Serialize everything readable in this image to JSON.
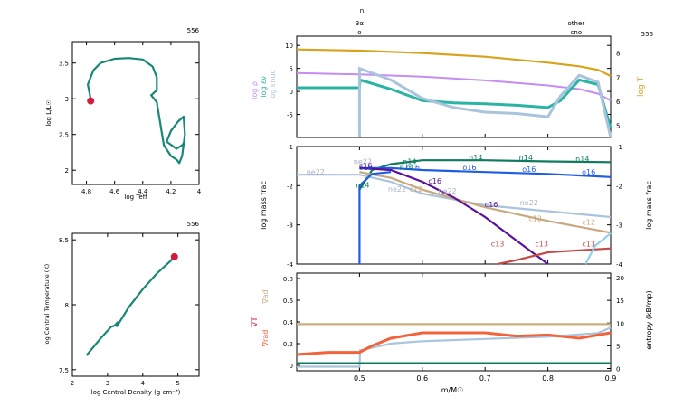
{
  "model_number": "556",
  "colors": {
    "teal": "#17877a",
    "crimson": "#d11c3c",
    "gold": "#d9a21b",
    "lavender": "#c58cf2",
    "lightblue": "#a9c4dc",
    "seagreen": "#2bb3a3",
    "darkgreen": "#0f7a5e",
    "purple": "#5b0f9e",
    "blue": "#1f5ce6",
    "tan": "#c8a97e",
    "rose": "#c44a4a",
    "skyblue": "#8fd0f0",
    "orange": "#f2633a",
    "khaki": "#c8b07e",
    "gray": "#a7b0c9"
  },
  "chart_data": [
    {
      "type": "line",
      "id": "hr",
      "corner_label": "556",
      "xlabel": "log Teff",
      "ylabel": "log L/L☉",
      "xlim": [
        4.9,
        4.0
      ],
      "ylim": [
        1.8,
        3.8
      ],
      "xticks": [
        "4.8",
        "4.6",
        "4.4",
        "4.2",
        "4"
      ],
      "yticks": [
        "2",
        "2.5",
        "3",
        "3.5"
      ],
      "series": [
        {
          "x": [
            4.78,
            4.77,
            4.79,
            4.75,
            4.7,
            4.6,
            4.5,
            4.4,
            4.33,
            4.3,
            4.3,
            4.34,
            4.3,
            4.25,
            4.2,
            4.16,
            4.14,
            4.12,
            4.1,
            4.11,
            4.15,
            4.2,
            4.23,
            4.16,
            4.12,
            4.1
          ],
          "y": [
            2.97,
            3.0,
            3.2,
            3.4,
            3.5,
            3.56,
            3.57,
            3.55,
            3.45,
            3.3,
            3.12,
            3.05,
            2.95,
            2.35,
            2.2,
            2.15,
            2.1,
            2.2,
            2.5,
            2.75,
            2.68,
            2.55,
            2.4,
            2.3,
            2.35,
            2.4
          ]
        }
      ],
      "marker": {
        "x": 4.77,
        "y": 2.97
      }
    },
    {
      "type": "line",
      "id": "central",
      "corner_label": "556",
      "xlabel": "log Central Density (g cm⁻³)",
      "ylabel": "log Central Temperature (K)",
      "xlim": [
        2.0,
        5.6
      ],
      "ylim": [
        7.45,
        8.55
      ],
      "xticks": [
        "2",
        "3",
        "4",
        "5"
      ],
      "yticks": [
        "7.5",
        "8",
        "8.5"
      ],
      "series": [
        {
          "x": [
            2.4,
            2.8,
            3.1,
            3.2,
            3.3,
            3.25,
            3.35,
            3.6,
            4.0,
            4.4,
            4.8,
            4.88
          ],
          "y": [
            7.61,
            7.74,
            7.83,
            7.84,
            7.87,
            7.83,
            7.87,
            7.98,
            8.12,
            8.24,
            8.34,
            8.37
          ]
        }
      ],
      "marker": {
        "x": 4.9,
        "y": 8.37
      }
    },
    {
      "type": "line",
      "id": "profile_top",
      "corner_label": "556",
      "top_axis_label": "n",
      "top_ticks": [
        {
          "x": 0.5,
          "label": "3α",
          "sub": "o"
        },
        {
          "x": 0.845,
          "label": "other",
          "sub": "cno"
        }
      ],
      "xlim": [
        0.4,
        0.9
      ],
      "ylim_left": [
        -10,
        12
      ],
      "ylim_right": [
        4.5,
        8.7
      ],
      "yticks_left": [
        "-5",
        "0",
        "5",
        "10"
      ],
      "yticks_right": [
        "5",
        "6",
        "7",
        "8"
      ],
      "ylabel_left": [
        "log ρ",
        "log εν",
        "log εnuc"
      ],
      "ylabel_right": "log T",
      "series": [
        {
          "name": "log T",
          "axis": "right",
          "x": [
            0.4,
            0.5,
            0.6,
            0.7,
            0.8,
            0.85,
            0.88,
            0.9
          ],
          "y": [
            8.15,
            8.1,
            8.0,
            7.85,
            7.6,
            7.45,
            7.3,
            7.05
          ]
        },
        {
          "name": "log ρ",
          "axis": "left",
          "x": [
            0.4,
            0.5,
            0.6,
            0.7,
            0.8,
            0.85,
            0.88,
            0.9
          ],
          "y": [
            4.0,
            3.7,
            3.2,
            2.4,
            1.3,
            0.5,
            -0.5,
            -2.0
          ]
        },
        {
          "name": "log εν",
          "axis": "left",
          "x": [
            0.4,
            0.5,
            0.501,
            0.55,
            0.6,
            0.65,
            0.7,
            0.75,
            0.8,
            0.82,
            0.85,
            0.88,
            0.9
          ],
          "y": [
            0.8,
            0.8,
            2.5,
            0.5,
            -2.0,
            -2.5,
            -2.7,
            -3.0,
            -3.5,
            -2.0,
            2.5,
            1.5,
            -8.0
          ]
        },
        {
          "name": "log εnuc",
          "axis": "left",
          "x": [
            0.5,
            0.5,
            0.55,
            0.6,
            0.65,
            0.7,
            0.75,
            0.8,
            0.82,
            0.85,
            0.88,
            0.9
          ],
          "y": [
            -10,
            5.0,
            2.5,
            -1.5,
            -3.5,
            -4.5,
            -4.8,
            -5.5,
            -1.0,
            3.5,
            2.0,
            -10
          ]
        }
      ]
    },
    {
      "type": "line",
      "id": "abundances",
      "ylabel_left": "log mass frac",
      "ylabel_right": "log mass frac",
      "xlim": [
        0.4,
        0.9
      ],
      "ylim": [
        -4,
        -1
      ],
      "yticks": [
        "-4",
        "-3",
        "-2",
        "-1"
      ],
      "series": [
        {
          "name": "n14",
          "x": [
            0.5,
            0.52,
            0.55,
            0.6,
            0.7,
            0.8,
            0.9
          ],
          "y": [
            -2.1,
            -1.6,
            -1.45,
            -1.35,
            -1.35,
            -1.38,
            -1.4
          ]
        },
        {
          "name": "o16",
          "x": [
            0.5,
            0.55,
            0.6,
            0.7,
            0.8,
            0.9
          ],
          "y": [
            -1.55,
            -1.55,
            -1.6,
            -1.65,
            -1.7,
            -1.78
          ]
        },
        {
          "name": "ne22",
          "x": [
            0.4,
            0.5,
            0.55,
            0.6,
            0.7,
            0.8,
            0.9
          ],
          "y": [
            -1.72,
            -1.72,
            -1.9,
            -2.2,
            -2.5,
            -2.65,
            -2.8
          ]
        },
        {
          "name": "c12",
          "x": [
            0.5,
            0.55,
            0.6,
            0.7,
            0.8,
            0.9
          ],
          "y": [
            -1.65,
            -1.8,
            -2.1,
            -2.55,
            -2.9,
            -3.2
          ]
        },
        {
          "name": "c16",
          "x": [
            0.5,
            0.55,
            0.6,
            0.65,
            0.7,
            0.75,
            0.8
          ],
          "y": [
            -1.55,
            -1.6,
            -1.9,
            -2.3,
            -2.8,
            -3.4,
            -4.0
          ]
        },
        {
          "name": "c13",
          "x": [
            0.72,
            0.75,
            0.8,
            0.85,
            0.9
          ],
          "y": [
            -4.0,
            -3.9,
            -3.7,
            -3.65,
            -3.6
          ]
        },
        {
          "name": "h1",
          "x": [
            0.5,
            0.5,
            0.52,
            0.55
          ],
          "y": [
            -4.0,
            -2.0,
            -1.7,
            -1.65
          ]
        }
      ],
      "labels": [
        "ne22",
        "ne22",
        "n14",
        "n14",
        "n14",
        "n14",
        "n14",
        "o16",
        "o16",
        "o16",
        "o16",
        "o16",
        "c16",
        "ne22",
        "ne22",
        "ne22",
        "c12",
        "c12",
        "c12",
        "c13",
        "c13",
        "c13",
        "n14",
        "c16",
        "c16"
      ]
    },
    {
      "type": "line",
      "id": "gradients",
      "xlabel": "m/M☉",
      "xlim": [
        0.4,
        0.9
      ],
      "xticks": [
        "0.5",
        "0.6",
        "0.7",
        "0.8",
        "0.9"
      ],
      "ylim_left": [
        -0.05,
        0.85
      ],
      "ylim_right": [
        -0.5,
        21
      ],
      "yticks_left": [
        "0",
        "0.2",
        "0.4",
        "0.6",
        "0.8"
      ],
      "yticks_right": [
        "0",
        "5",
        "10",
        "15",
        "20"
      ],
      "ylabel_left": [
        "∇ad",
        "∇T",
        "∇rad"
      ],
      "ylabel_right": "entropy (kB/mp)",
      "series": [
        {
          "name": "∇ad",
          "axis": "left",
          "x": [
            0.4,
            0.5,
            0.6,
            0.7,
            0.8,
            0.9
          ],
          "y": [
            0.38,
            0.38,
            0.38,
            0.38,
            0.38,
            0.38
          ]
        },
        {
          "name": "entropy",
          "axis": "right",
          "x": [
            0.4,
            0.5,
            0.501,
            0.55,
            0.6,
            0.7,
            0.8,
            0.88,
            0.9
          ],
          "y": [
            0.4,
            0.4,
            4.0,
            5.5,
            6.0,
            6.5,
            7.0,
            7.8,
            9.0
          ]
        },
        {
          "name": "∇rad",
          "axis": "left",
          "x": [
            0.4,
            0.45,
            0.5,
            0.52,
            0.55,
            0.6,
            0.7,
            0.75,
            0.8,
            0.85,
            0.88,
            0.9
          ],
          "y": [
            0.1,
            0.12,
            0.12,
            0.18,
            0.25,
            0.3,
            0.3,
            0.27,
            0.28,
            0.25,
            0.28,
            0.3
          ]
        },
        {
          "name": "∇T",
          "axis": "left",
          "x": [
            0.4,
            0.5,
            0.55,
            0.6,
            0.7,
            0.8,
            0.9
          ],
          "y": [
            0.02,
            0.02,
            0.02,
            0.02,
            0.02,
            0.02,
            0.02
          ]
        }
      ]
    }
  ]
}
